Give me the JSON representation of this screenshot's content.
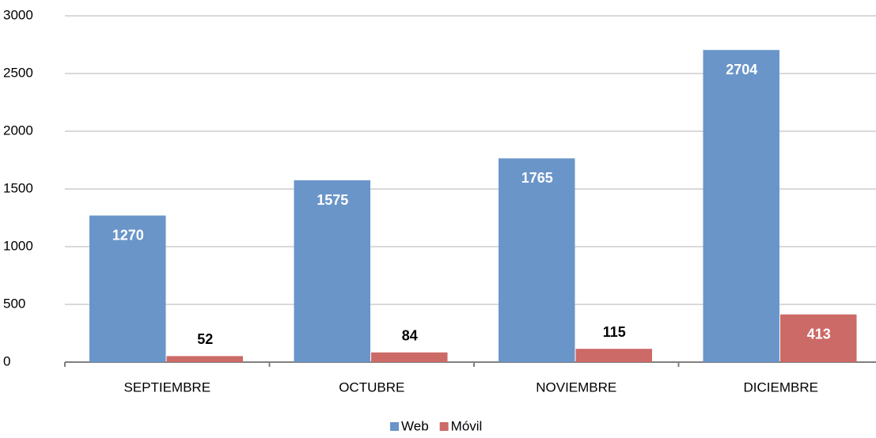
{
  "chart_data": {
    "type": "bar",
    "categories": [
      "SEPTIEMBRE",
      "OCTUBRE",
      "NOVIEMBRE",
      "DICIEMBRE"
    ],
    "series": [
      {
        "name": "Web",
        "color": "#6a95c9",
        "values": [
          1270,
          1575,
          1765,
          2704
        ]
      },
      {
        "name": "Móvil",
        "color": "#cc6a67",
        "values": [
          52,
          84,
          115,
          413
        ]
      }
    ],
    "ylim": [
      0,
      3000
    ],
    "yticks": [
      0,
      500,
      1000,
      1500,
      2000,
      2500,
      3000
    ],
    "grid": true,
    "legend": "bottom"
  }
}
